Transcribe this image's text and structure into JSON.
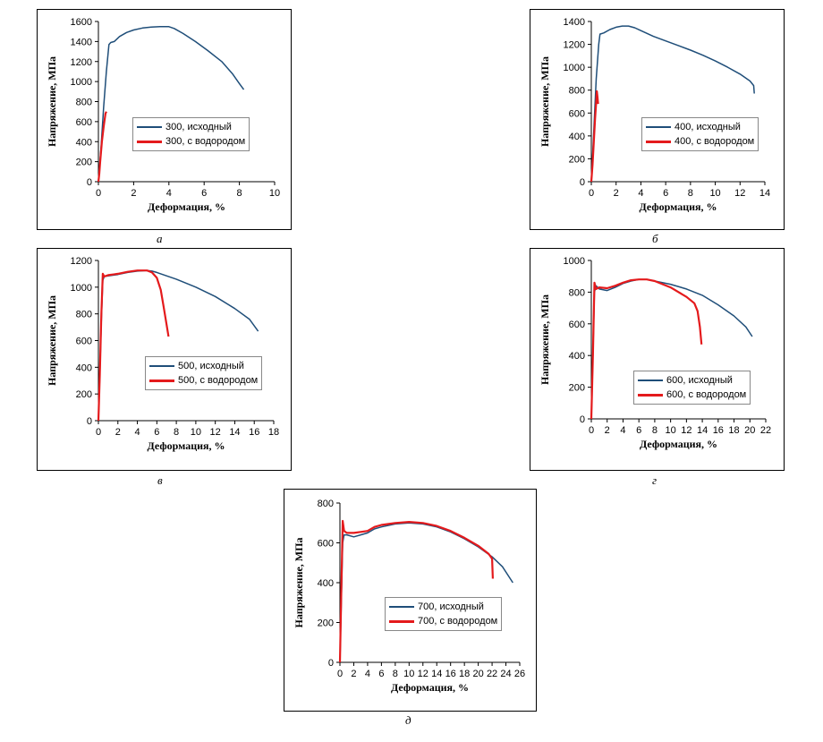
{
  "captions": [
    "а",
    "б",
    "в",
    "г",
    "д"
  ],
  "chart_data": [
    {
      "type": "line",
      "xlabel": "Деформация, %",
      "ylabel": "Напряжение, МПа",
      "xlim": [
        0,
        10
      ],
      "ylim": [
        0,
        1600
      ],
      "xticks": [
        0,
        2,
        4,
        6,
        8,
        10
      ],
      "yticks": [
        0,
        200,
        400,
        600,
        800,
        1000,
        1200,
        1400,
        1600
      ],
      "legend": "center",
      "series": [
        {
          "name": "300, исходный",
          "color": "#1f4e79",
          "x": [
            0,
            0.15,
            0.3,
            0.45,
            0.6,
            0.7,
            0.9,
            1.2,
            1.6,
            2.0,
            2.5,
            3.0,
            3.5,
            4.0,
            4.3,
            4.8,
            5.5,
            6.2,
            7.0,
            7.6,
            8.0,
            8.25
          ],
          "y": [
            0,
            350,
            750,
            1100,
            1370,
            1390,
            1400,
            1450,
            1490,
            1515,
            1535,
            1545,
            1548,
            1548,
            1530,
            1480,
            1400,
            1310,
            1200,
            1080,
            980,
            920
          ]
        },
        {
          "name": "300, с водородом",
          "color": "#e41a1c",
          "x": [
            0,
            0.05,
            0.1,
            0.2,
            0.3,
            0.4,
            0.45
          ],
          "y": [
            0,
            80,
            200,
            400,
            550,
            680,
            700
          ]
        }
      ]
    },
    {
      "type": "line",
      "xlabel": "Деформация, %",
      "ylabel": "Напряжение, МПа",
      "xlim": [
        0,
        14
      ],
      "ylim": [
        0,
        1400
      ],
      "xticks": [
        0,
        2,
        4,
        6,
        8,
        10,
        12,
        14
      ],
      "yticks": [
        0,
        200,
        400,
        600,
        800,
        1000,
        1200,
        1400
      ],
      "legend": "center-right",
      "series": [
        {
          "name": "400, исходный",
          "color": "#1f4e79",
          "x": [
            0,
            0.2,
            0.4,
            0.6,
            0.7,
            1.0,
            1.5,
            2.0,
            2.5,
            3.0,
            3.5,
            4.0,
            5.0,
            6.0,
            7.0,
            8.0,
            9.0,
            10.0,
            11.0,
            12.0,
            12.8,
            13.1,
            13.15
          ],
          "y": [
            0,
            450,
            900,
            1200,
            1290,
            1300,
            1330,
            1350,
            1360,
            1360,
            1345,
            1320,
            1270,
            1230,
            1190,
            1150,
            1105,
            1055,
            1000,
            940,
            880,
            840,
            770
          ]
        },
        {
          "name": "400, с водородом",
          "color": "#e41a1c",
          "x": [
            0,
            0.1,
            0.2,
            0.3,
            0.4,
            0.45,
            0.5,
            0.55
          ],
          "y": [
            0,
            150,
            350,
            550,
            700,
            790,
            740,
            680
          ]
        }
      ]
    },
    {
      "type": "line",
      "xlabel": "Деформация, %",
      "ylabel": "Напряжение, МПа",
      "xlim": [
        0,
        18
      ],
      "ylim": [
        0,
        1200
      ],
      "xticks": [
        0,
        2,
        4,
        6,
        8,
        10,
        12,
        14,
        16,
        18
      ],
      "yticks": [
        0,
        200,
        400,
        600,
        800,
        1000,
        1200
      ],
      "legend": "center-right",
      "series": [
        {
          "name": "500, исходный",
          "color": "#1f4e79",
          "x": [
            0,
            0.15,
            0.3,
            0.45,
            0.6,
            1.0,
            2.0,
            3.0,
            4.0,
            5.0,
            5.5,
            6.0,
            8.0,
            10.0,
            12.0,
            14.0,
            15.5,
            16.4
          ],
          "y": [
            0,
            350,
            750,
            1050,
            1080,
            1085,
            1095,
            1110,
            1120,
            1125,
            1120,
            1110,
            1060,
            1000,
            930,
            840,
            760,
            670
          ]
        },
        {
          "name": "500, с водородом",
          "color": "#e41a1c",
          "x": [
            0,
            0.15,
            0.3,
            0.45,
            0.6,
            1.0,
            2.0,
            3.0,
            4.0,
            5.0,
            5.5,
            6.0,
            6.4,
            6.7,
            7.0,
            7.2
          ],
          "y": [
            0,
            350,
            800,
            1100,
            1080,
            1090,
            1100,
            1115,
            1125,
            1125,
            1110,
            1070,
            980,
            850,
            720,
            630
          ]
        }
      ]
    },
    {
      "type": "line",
      "xlabel": "Деформация, %",
      "ylabel": "Напряжение, МПа",
      "xlim": [
        0,
        22
      ],
      "ylim": [
        0,
        1000
      ],
      "xticks": [
        0,
        2,
        4,
        6,
        8,
        10,
        12,
        14,
        16,
        18,
        20,
        22
      ],
      "yticks": [
        0,
        200,
        400,
        600,
        800,
        1000
      ],
      "legend": "bottom-right",
      "series": [
        {
          "name": "600, исходный",
          "color": "#1f4e79",
          "x": [
            0,
            0.2,
            0.4,
            0.6,
            1.0,
            2.0,
            3.0,
            4.0,
            5.0,
            6.0,
            7.0,
            8.0,
            10.0,
            12.0,
            14.0,
            16.0,
            18.0,
            19.5,
            20.3
          ],
          "y": [
            0,
            400,
            800,
            840,
            820,
            810,
            830,
            855,
            870,
            880,
            880,
            870,
            850,
            820,
            780,
            720,
            650,
            580,
            520
          ]
        },
        {
          "name": "600, с водородом",
          "color": "#e41a1c",
          "x": [
            0,
            0.2,
            0.4,
            0.6,
            1.0,
            2.0,
            3.0,
            4.0,
            5.0,
            6.0,
            7.0,
            8.0,
            10.0,
            12.0,
            13.0,
            13.4,
            13.7,
            13.9
          ],
          "y": [
            0,
            400,
            860,
            820,
            830,
            825,
            840,
            860,
            875,
            880,
            880,
            870,
            830,
            770,
            730,
            680,
            580,
            470
          ]
        }
      ]
    },
    {
      "type": "line",
      "xlabel": "Деформация, %",
      "ylabel": "Напряжение, МПа",
      "xlim": [
        0,
        26
      ],
      "ylim": [
        0,
        800
      ],
      "xticks": [
        0,
        2,
        4,
        6,
        8,
        10,
        12,
        14,
        16,
        18,
        20,
        22,
        24,
        26
      ],
      "yticks": [
        0,
        200,
        400,
        600,
        800
      ],
      "legend": "bottom-right",
      "series": [
        {
          "name": "700, исходный",
          "color": "#1f4e79",
          "x": [
            0,
            0.2,
            0.4,
            0.6,
            1.0,
            2.0,
            3.0,
            4.0,
            5.0,
            6.0,
            8.0,
            10.0,
            12.0,
            14.0,
            16.0,
            18.0,
            20.0,
            22.0,
            23.5,
            25.0
          ],
          "y": [
            0,
            300,
            600,
            640,
            640,
            630,
            640,
            650,
            670,
            680,
            695,
            700,
            695,
            680,
            655,
            620,
            580,
            530,
            480,
            400
          ]
        },
        {
          "name": "700, с водородом",
          "color": "#e41a1c",
          "x": [
            0,
            0.2,
            0.4,
            0.6,
            1.0,
            2.0,
            3.0,
            4.0,
            5.0,
            6.0,
            8.0,
            10.0,
            12.0,
            14.0,
            16.0,
            18.0,
            20.0,
            21.5,
            22.0,
            22.1
          ],
          "y": [
            0,
            350,
            710,
            660,
            650,
            650,
            655,
            660,
            680,
            690,
            700,
            705,
            700,
            685,
            660,
            625,
            585,
            545,
            520,
            420
          ]
        }
      ]
    }
  ]
}
